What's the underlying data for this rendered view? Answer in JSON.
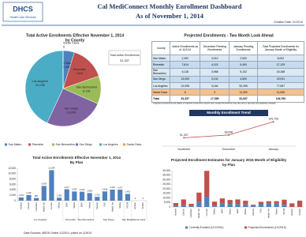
{
  "header": {
    "logo": "DHCS",
    "logo_sub": "Health Care Services",
    "title": "Cal MediConnect Monthly Enrollment Dashboard",
    "subtitle": "As of November 1, 2014",
    "creation_date": "Creation Date: 11/12/14"
  },
  "table": {
    "title": "Projected Enrollments - Two Month Look Ahead",
    "columns": [
      "County",
      "Active Enrollments as of 11/1/14",
      "December Pending Enrollments",
      "January Pending Enrollments",
      "Total Projected Enrollments for January Month of Eligibility"
    ],
    "rows": [
      [
        "San Mateo",
        "2,492",
        "3,010",
        "2,500",
        "8,002"
      ],
      [
        "Riverside",
        "7,614",
        "4,115",
        "5,400",
        "17,129"
      ],
      [
        "San Bernardino",
        "6,118",
        "3,968",
        "5,102",
        "15,188"
      ],
      [
        "San Diego",
        "13,009",
        "3,102",
        "4,800",
        "20,911"
      ],
      [
        "Los Angeles",
        "22,098",
        "3,164",
        "52,295",
        "77,557"
      ],
      [
        "Santa Clara",
        "6",
        "0",
        "11,000",
        "11,006"
      ],
      [
        "Total",
        "51,337",
        "17,359",
        "81,097",
        "149,793"
      ]
    ],
    "footnote": "* Projected enrollments are based on passive enrollment notices sent; actual enrollments may vary due to opt-outs and eligibility changes."
  },
  "footer": "Data Sources: MEDS Online 11/2014, pulled on 11/5/14",
  "chart_data": [
    {
      "type": "pie",
      "title": "Total Active Enrollments Effective November 1, 2014",
      "subtitle": "by County",
      "categories": [
        "San Mateo",
        "Riverside",
        "San Bernardino",
        "San Diego",
        "Los Angeles",
        "Santa Clara"
      ],
      "values": [
        2492,
        7614,
        6118,
        13009,
        22098,
        6
      ],
      "value_labels": [
        "2,492",
        "7,614",
        "6,118",
        "13,009",
        "22,098",
        "6"
      ],
      "colors": [
        "#4f81bd",
        "#c0504d",
        "#9bbb59",
        "#8064a2",
        "#4bacc6",
        "#f79646"
      ],
      "annotation": "Total Active Enrollments",
      "total": {
        "value": 51337,
        "label": "51,337"
      },
      "legend": "bottom"
    },
    {
      "type": "line",
      "title": "Monthly Enrollment Trend",
      "categories": [
        "November",
        "December",
        "January"
      ],
      "values": [
        51337,
        68696,
        149793
      ],
      "value_labels": [
        "51,337",
        "68,696",
        "149,793"
      ],
      "color": "#c0504d",
      "ylim": [
        0,
        160000
      ]
    },
    {
      "type": "grouped-bar",
      "title": "Total Active Enrollments Effective November 1, 2014",
      "subtitle": "By Plan",
      "color": "#4f81bd",
      "groups": [
        {
          "name": "Los Angeles",
          "categories": [
            "Anthem",
            "Care1st",
            "CareMore",
            "Health Net",
            "LA Care",
            "Molina"
          ],
          "values": [
            1203,
            2102,
            987,
            5429,
            11294,
            1083
          ],
          "value_labels": [
            "1,203",
            "2,102",
            "987",
            "5,429",
            "11,294",
            "1,083"
          ]
        },
        {
          "name": "Riverside",
          "categories": [
            "IEHP",
            "Molina"
          ],
          "values": [
            4217,
            3397
          ],
          "value_labels": [
            "4,217",
            "3,397"
          ]
        },
        {
          "name": "San Bernardino",
          "categories": [
            "IEHP",
            "Molina"
          ],
          "values": [
            3312,
            2806
          ],
          "value_labels": [
            "3,312",
            "2,806"
          ]
        },
        {
          "name": "San Diego",
          "categories": [
            "Care1st",
            "CHG",
            "Health Net",
            "Molina"
          ],
          "values": [
            1412,
            3418,
            4102,
            4077
          ],
          "value_labels": [
            "1,412",
            "3,418",
            "4,102",
            "4,077"
          ]
        },
        {
          "name": "San Mateo",
          "categories": [
            "HPSM"
          ],
          "values": [
            2492
          ],
          "value_labels": [
            "2,492"
          ]
        },
        {
          "name": "Santa Clara",
          "categories": [
            "Anthem",
            "SCFHP"
          ],
          "values": [
            2,
            4
          ],
          "value_labels": [
            "2",
            "4"
          ]
        }
      ],
      "ylim": [
        0,
        12000
      ],
      "yticks": [
        0,
        {
          "value": 2000,
          "label": "2,000"
        },
        {
          "value": 4000,
          "label": "4,000"
        },
        {
          "value": 6000,
          "label": "6,000"
        },
        {
          "value": 8000,
          "label": "8,000"
        },
        {
          "value": 10000,
          "label": "10,000"
        },
        {
          "value": 12000,
          "label": "12,000"
        }
      ]
    },
    {
      "type": "stacked-bar",
      "title": "Projected Enrollment Estimates for January 2015 Month of Eligibility",
      "subtitle": "by Plan",
      "categories": [
        "Anthem",
        "Care1st",
        "CareMore",
        "Health Net",
        "LA Care",
        "Molina",
        "IEHP",
        "Molina",
        "IEHP",
        "Molina",
        "Care1st",
        "CHG",
        "Health Net",
        "Molina",
        "HPSM",
        "Anthem",
        "SCFHP"
      ],
      "series": [
        {
          "name": "Currently Enrolled (11/1/2014)",
          "color": "#4f81bd",
          "values": [
            1203,
            2102,
            987,
            5429,
            11294,
            1083,
            4217,
            3397,
            3312,
            2806,
            1412,
            3418,
            4102,
            4077,
            2492,
            2,
            4
          ]
        },
        {
          "name": "Projected Enrollments (1/1/2015)",
          "color": "#c0504d",
          "values": [
            3100,
            6200,
            2500,
            10400,
            28459,
            4800,
            5200,
            4315,
            5000,
            4070,
            1100,
            2300,
            2202,
            2300,
            5510,
            4000,
            7000
          ]
        }
      ],
      "ylim": [
        0,
        40000
      ],
      "yticks": [
        0,
        {
          "value": 5000,
          "label": "5,000"
        },
        {
          "value": 10000,
          "label": "10,000"
        },
        {
          "value": 15000,
          "label": "15,000"
        },
        {
          "value": 20000,
          "label": "20,000"
        },
        {
          "value": 25000,
          "label": "25,000"
        },
        {
          "value": 30000,
          "label": "30,000"
        },
        {
          "value": 35000,
          "label": "35,000"
        },
        {
          "value": 40000,
          "label": "40,000"
        }
      ],
      "legend": "bottom"
    }
  ]
}
